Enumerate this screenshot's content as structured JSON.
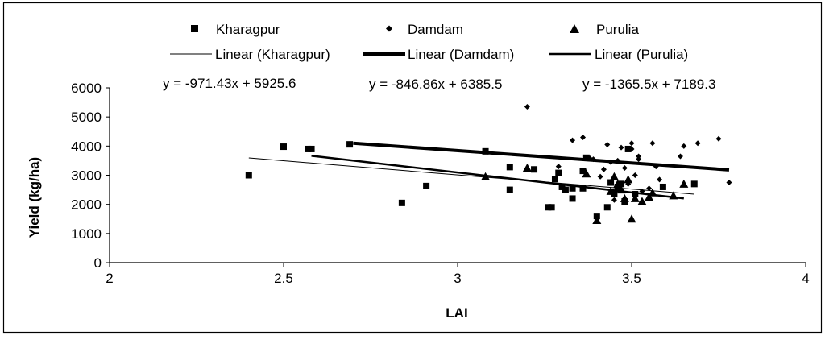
{
  "chart_data": {
    "type": "scatter",
    "xlabel": "LAI",
    "ylabel": "Yield (kg/ha)",
    "xlim": [
      2,
      4
    ],
    "ylim": [
      0,
      6000
    ],
    "x_ticks": [
      "2",
      "2.5",
      "3",
      "3.5",
      "4"
    ],
    "y_ticks": [
      "0",
      "1000",
      "2000",
      "3000",
      "4000",
      "5000",
      "6000"
    ],
    "grid": false,
    "legend_position": "top",
    "series": [
      {
        "name": "Kharagpur",
        "marker": "square",
        "points": [
          [
            2.4,
            3000
          ],
          [
            2.5,
            3980
          ],
          [
            2.57,
            3900
          ],
          [
            2.58,
            3900
          ],
          [
            2.69,
            4060
          ],
          [
            2.84,
            2050
          ],
          [
            2.91,
            2630
          ],
          [
            3.08,
            3820
          ],
          [
            3.15,
            3280
          ],
          [
            3.15,
            2500
          ],
          [
            3.22,
            3200
          ],
          [
            3.26,
            1900
          ],
          [
            3.27,
            1900
          ],
          [
            3.28,
            2870
          ],
          [
            3.29,
            3080
          ],
          [
            3.3,
            2600
          ],
          [
            3.31,
            2500
          ],
          [
            3.33,
            2550
          ],
          [
            3.33,
            2200
          ],
          [
            3.36,
            3150
          ],
          [
            3.36,
            2550
          ],
          [
            3.37,
            3600
          ],
          [
            3.4,
            1600
          ],
          [
            3.43,
            1900
          ],
          [
            3.44,
            2750
          ],
          [
            3.45,
            2350
          ],
          [
            3.46,
            2600
          ],
          [
            3.47,
            2700
          ],
          [
            3.48,
            2100
          ],
          [
            3.49,
            3900
          ],
          [
            3.51,
            2350
          ],
          [
            3.59,
            2600
          ],
          [
            3.68,
            2700
          ]
        ]
      },
      {
        "name": "Damdam",
        "marker": "diamond",
        "points": [
          [
            3.2,
            5350
          ],
          [
            3.29,
            3300
          ],
          [
            3.33,
            4200
          ],
          [
            3.36,
            4300
          ],
          [
            3.38,
            3580
          ],
          [
            3.39,
            3550
          ],
          [
            3.41,
            2950
          ],
          [
            3.42,
            3200
          ],
          [
            3.43,
            4050
          ],
          [
            3.44,
            3450
          ],
          [
            3.45,
            2150
          ],
          [
            3.46,
            3500
          ],
          [
            3.47,
            2500
          ],
          [
            3.47,
            3950
          ],
          [
            3.48,
            3250
          ],
          [
            3.49,
            2700
          ],
          [
            3.5,
            4100
          ],
          [
            3.5,
            3900
          ],
          [
            3.51,
            3000
          ],
          [
            3.52,
            3550
          ],
          [
            3.52,
            3650
          ],
          [
            3.53,
            2450
          ],
          [
            3.55,
            2550
          ],
          [
            3.56,
            4100
          ],
          [
            3.57,
            3300
          ],
          [
            3.58,
            2850
          ],
          [
            3.64,
            3650
          ],
          [
            3.65,
            4000
          ],
          [
            3.69,
            4100
          ],
          [
            3.75,
            4250
          ],
          [
            3.78,
            2750
          ]
        ]
      },
      {
        "name": "Purulia",
        "marker": "triangle",
        "points": [
          [
            3.08,
            2950
          ],
          [
            3.2,
            3250
          ],
          [
            3.37,
            3050
          ],
          [
            3.4,
            1450
          ],
          [
            3.44,
            2450
          ],
          [
            3.45,
            2950
          ],
          [
            3.46,
            2700
          ],
          [
            3.47,
            2500
          ],
          [
            3.48,
            2200
          ],
          [
            3.49,
            2850
          ],
          [
            3.5,
            1500
          ],
          [
            3.51,
            2200
          ],
          [
            3.53,
            2100
          ],
          [
            3.55,
            2250
          ],
          [
            3.56,
            2400
          ],
          [
            3.62,
            2300
          ],
          [
            3.65,
            2700
          ]
        ]
      }
    ],
    "trendlines": [
      {
        "name": "Linear (Kharagpur)",
        "series": "Kharagpur",
        "slope": -971.43,
        "intercept": 5925.6,
        "x_range": [
          2.4,
          3.68
        ],
        "equation": "y = -971.43x + 5925.6",
        "stroke": "thin"
      },
      {
        "name": "Linear (Damdam)",
        "series": "Damdam",
        "slope": -846.86,
        "intercept": 6385.5,
        "x_range": [
          2.7,
          3.78
        ],
        "equation": "y = -846.86x + 6385.5",
        "stroke": "thick"
      },
      {
        "name": "Linear (Purulia)",
        "series": "Purulia",
        "slope": -1365.5,
        "intercept": 7189.3,
        "x_range": [
          2.58,
          3.65
        ],
        "equation": "y = -1365.5x + 7189.3",
        "stroke": "medium"
      }
    ]
  }
}
